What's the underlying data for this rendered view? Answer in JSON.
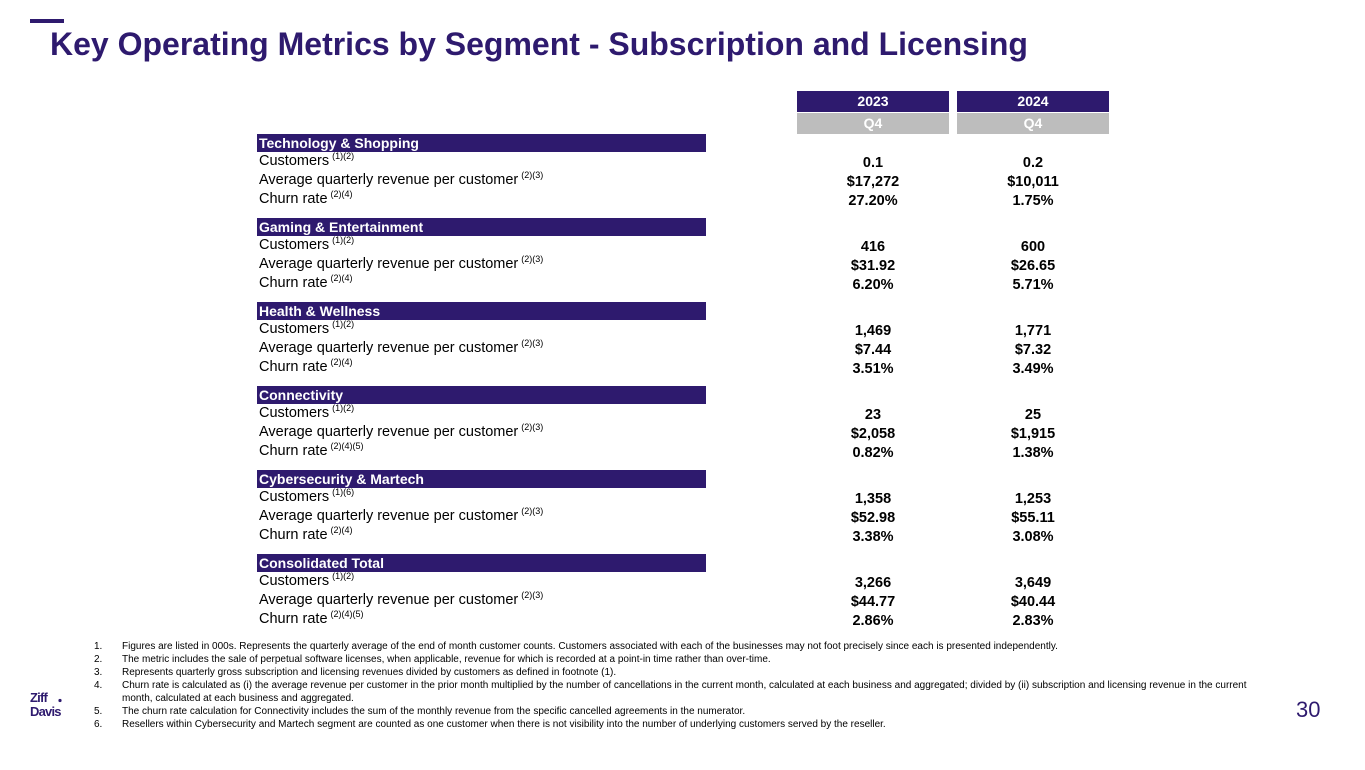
{
  "title": "Key Operating Metrics by Segment - Subscription and Licensing",
  "columns": [
    {
      "year": "2023",
      "quarter": "Q4"
    },
    {
      "year": "2024",
      "quarter": "Q4"
    }
  ],
  "segments": [
    {
      "name": "Technology & Shopping",
      "rows": [
        {
          "label": "Customers",
          "notes": "(1)(2)",
          "v2023": "0.1",
          "v2024": "0.2"
        },
        {
          "label": "Average quarterly revenue per customer",
          "notes": "(2)(3)",
          "v2023": "$17,272",
          "v2024": "$10,011"
        },
        {
          "label": "Churn rate",
          "notes": "(2)(4)",
          "v2023": "27.20%",
          "v2024": "1.75%"
        }
      ]
    },
    {
      "name": "Gaming & Entertainment",
      "rows": [
        {
          "label": "Customers",
          "notes": "(1)(2)",
          "v2023": "416",
          "v2024": "600"
        },
        {
          "label": "Average quarterly revenue per customer",
          "notes": "(2)(3)",
          "v2023": "$31.92",
          "v2024": "$26.65"
        },
        {
          "label": "Churn rate",
          "notes": "(2)(4)",
          "v2023": "6.20%",
          "v2024": "5.71%"
        }
      ]
    },
    {
      "name": "Health & Wellness",
      "rows": [
        {
          "label": "Customers",
          "notes": "(1)(2)",
          "v2023": "1,469",
          "v2024": "1,771"
        },
        {
          "label": "Average quarterly revenue per customer",
          "notes": "(2)(3)",
          "v2023": "$7.44",
          "v2024": "$7.32"
        },
        {
          "label": "Churn rate",
          "notes": "(2)(4)",
          "v2023": "3.51%",
          "v2024": "3.49%"
        }
      ]
    },
    {
      "name": "Connectivity",
      "rows": [
        {
          "label": "Customers",
          "notes": "(1)(2)",
          "v2023": "23",
          "v2024": "25"
        },
        {
          "label": "Average quarterly revenue per customer",
          "notes": "(2)(3)",
          "v2023": "$2,058",
          "v2024": "$1,915"
        },
        {
          "label": "Churn rate",
          "notes": "(2)(4)(5)",
          "v2023": "0.82%",
          "v2024": "1.38%"
        }
      ]
    },
    {
      "name": "Cybersecurity & Martech",
      "rows": [
        {
          "label": "Customers",
          "notes": "(1)(6)",
          "v2023": "1,358",
          "v2024": "1,253"
        },
        {
          "label": "Average quarterly revenue per customer",
          "notes": "(2)(3)",
          "v2023": "$52.98",
          "v2024": "$55.11"
        },
        {
          "label": "Churn rate",
          "notes": "(2)(4)",
          "v2023": "3.38%",
          "v2024": "3.08%"
        }
      ]
    },
    {
      "name": "Consolidated Total",
      "rows": [
        {
          "label": "Customers",
          "notes": "(1)(2)",
          "v2023": "3,266",
          "v2024": "3,649"
        },
        {
          "label": "Average quarterly revenue per customer",
          "notes": "(2)(3)",
          "v2023": "$44.77",
          "v2024": "$40.44"
        },
        {
          "label": "Churn rate",
          "notes": "(2)(4)(5)",
          "v2023": "2.86%",
          "v2024": "2.83%"
        }
      ]
    }
  ],
  "footnotes": [
    {
      "num": "1.",
      "text": "Figures are listed in 000s. Represents the quarterly average of the end of month customer counts. Customers associated with each of the businesses may not foot precisely since each is presented independently."
    },
    {
      "num": "2.",
      "text": "The metric includes the sale of perpetual software licenses, when applicable, revenue for which is recorded at a point-in time rather than over-time."
    },
    {
      "num": "3.",
      "text": "Represents quarterly gross subscription and licensing revenues divided by customers as defined in footnote (1)."
    },
    {
      "num": "4.",
      "text": "Churn rate is calculated as (i) the average revenue per customer in the prior month multiplied by the number of cancellations in the current month, calculated at each business and aggregated; divided by (ii) subscription and licensing revenue in the current month, calculated at each business and aggregated."
    },
    {
      "num": "5.",
      "text": "The churn rate calculation for Connectivity includes the sum of the monthly revenue from the specific cancelled agreements in the numerator."
    },
    {
      "num": "6.",
      "text": "Resellers within Cybersecurity and Martech segment are counted as one customer when there is not visibility into the number of underlying customers served by the reseller."
    }
  ],
  "logo": {
    "line1": "Ziff",
    "line2": "Davis"
  },
  "page_number": "30",
  "colors": {
    "brand": "#2e1a6e",
    "quarter_header": "#bdbdbd"
  }
}
